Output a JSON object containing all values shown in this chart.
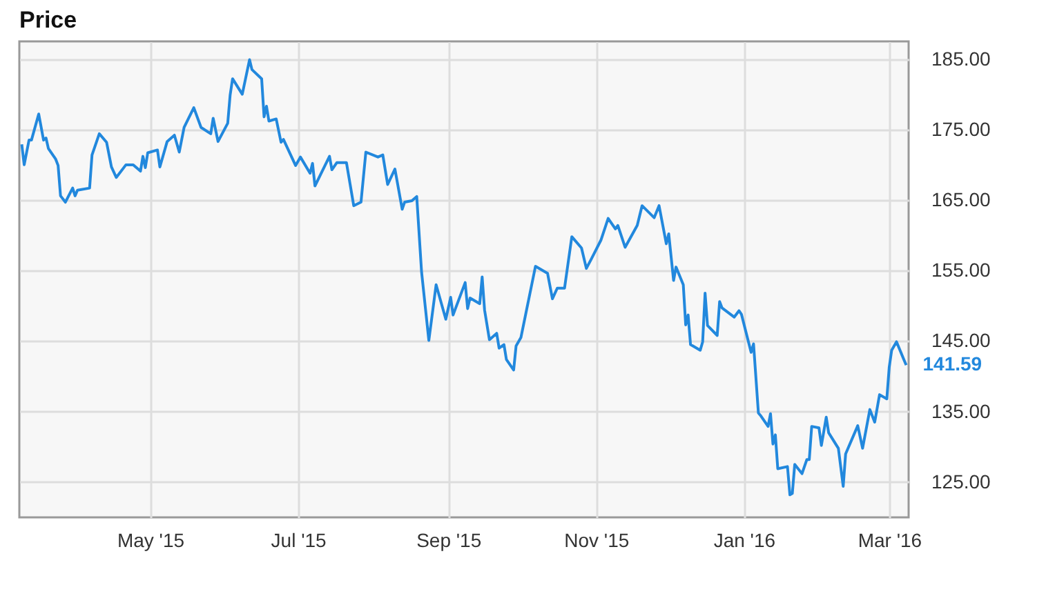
{
  "chart_data": {
    "type": "line",
    "title": "Price",
    "color": "#2288dd",
    "grid": true,
    "x": [
      "2015-03-09",
      "2015-03-10",
      "2015-03-12",
      "2015-03-13",
      "2015-03-16",
      "2015-03-18",
      "2015-03-19",
      "2015-03-20",
      "2015-03-23",
      "2015-03-24",
      "2015-03-25",
      "2015-03-27",
      "2015-03-30",
      "2015-03-31",
      "2015-04-01",
      "2015-04-06",
      "2015-04-07",
      "2015-04-10",
      "2015-04-13",
      "2015-04-15",
      "2015-04-17",
      "2015-04-21",
      "2015-04-24",
      "2015-04-27",
      "2015-04-28",
      "2015-04-29",
      "2015-04-30",
      "2015-05-04",
      "2015-05-05",
      "2015-05-08",
      "2015-05-11",
      "2015-05-13",
      "2015-05-15",
      "2015-05-19",
      "2015-05-22",
      "2015-05-26",
      "2015-05-27",
      "2015-05-29",
      "2015-06-02",
      "2015-06-03",
      "2015-06-04",
      "2015-06-08",
      "2015-06-11",
      "2015-06-12",
      "2015-06-16",
      "2015-06-17",
      "2015-06-18",
      "2015-06-19",
      "2015-06-22",
      "2015-06-24",
      "2015-06-25",
      "2015-06-30",
      "2015-07-02",
      "2015-07-06",
      "2015-07-07",
      "2015-07-08",
      "2015-07-14",
      "2015-07-15",
      "2015-07-17",
      "2015-07-21",
      "2015-07-24",
      "2015-07-27",
      "2015-07-29",
      "2015-08-03",
      "2015-08-05",
      "2015-08-07",
      "2015-08-10",
      "2015-08-13",
      "2015-08-14",
      "2015-08-17",
      "2015-08-19",
      "2015-08-21",
      "2015-08-24",
      "2015-08-27",
      "2015-08-31",
      "2015-09-02",
      "2015-09-03",
      "2015-09-08",
      "2015-09-09",
      "2015-09-10",
      "2015-09-14",
      "2015-09-15",
      "2015-09-16",
      "2015-09-18",
      "2015-09-21",
      "2015-09-22",
      "2015-09-24",
      "2015-09-25",
      "2015-09-28",
      "2015-09-29",
      "2015-10-01",
      "2015-10-07",
      "2015-10-12",
      "2015-10-14",
      "2015-10-16",
      "2015-10-19",
      "2015-10-22",
      "2015-10-26",
      "2015-10-28",
      "2015-10-30",
      "2015-11-03",
      "2015-11-06",
      "2015-11-09",
      "2015-11-10",
      "2015-11-13",
      "2015-11-18",
      "2015-11-20",
      "2015-11-25",
      "2015-11-27",
      "2015-11-30",
      "2015-12-01",
      "2015-12-03",
      "2015-12-04",
      "2015-12-07",
      "2015-12-08",
      "2015-12-09",
      "2015-12-10",
      "2015-12-14",
      "2015-12-15",
      "2015-12-16",
      "2015-12-17",
      "2015-12-21",
      "2015-12-22",
      "2015-12-23",
      "2015-12-28",
      "2015-12-30",
      "2015-12-31",
      "2016-01-04",
      "2016-01-05",
      "2016-01-07",
      "2016-01-08",
      "2016-01-11",
      "2016-01-12",
      "2016-01-13",
      "2016-01-14",
      "2016-01-15",
      "2016-01-19",
      "2016-01-20",
      "2016-01-21",
      "2016-01-22",
      "2016-01-25",
      "2016-01-27",
      "2016-01-28",
      "2016-01-29",
      "2016-02-01",
      "2016-02-02",
      "2016-02-04",
      "2016-02-05",
      "2016-02-09",
      "2016-02-11",
      "2016-02-12",
      "2016-02-17",
      "2016-02-19",
      "2016-02-22",
      "2016-02-24",
      "2016-02-26",
      "2016-02-29",
      "2016-03-01",
      "2016-03-02",
      "2016-03-04",
      "2016-03-07",
      "2016-03-08"
    ],
    "values": [
      172.9,
      170.0,
      173.5,
      173.5,
      177.2,
      173.5,
      173.8,
      172.3,
      170.8,
      169.9,
      165.6,
      164.7,
      166.7,
      165.6,
      166.4,
      166.7,
      171.4,
      174.4,
      173.2,
      169.7,
      168.2,
      170.0,
      170.0,
      169.1,
      171.2,
      169.6,
      171.7,
      172.1,
      169.7,
      173.3,
      174.2,
      171.8,
      175.3,
      178.1,
      175.3,
      174.4,
      176.6,
      173.3,
      175.9,
      179.9,
      182.2,
      180.0,
      184.9,
      183.5,
      182.2,
      176.8,
      178.3,
      176.2,
      176.5,
      173.2,
      173.6,
      169.9,
      171.1,
      168.8,
      170.2,
      167.0,
      171.2,
      169.3,
      170.3,
      170.3,
      164.2,
      164.7,
      171.8,
      171.1,
      171.4,
      167.2,
      169.4,
      163.7,
      164.7,
      164.9,
      165.5,
      154.8,
      145.1,
      153.0,
      148.1,
      151.2,
      148.7,
      153.3,
      149.6,
      151.1,
      150.3,
      154.1,
      149.4,
      145.2,
      146.1,
      144.0,
      144.5,
      142.4,
      140.9,
      144.3,
      145.5,
      155.6,
      154.6,
      151.0,
      152.5,
      152.5,
      159.8,
      158.2,
      155.3,
      156.6,
      159.3,
      162.4,
      160.9,
      161.4,
      158.3,
      161.4,
      164.2,
      162.5,
      164.2,
      158.8,
      160.2,
      153.6,
      155.5,
      153.0,
      147.3,
      148.7,
      144.5,
      143.7,
      144.9,
      151.8,
      147.2,
      145.8,
      150.6,
      149.7,
      148.4,
      149.3,
      148.8,
      143.4,
      144.6,
      134.8,
      134.4,
      132.9,
      134.7,
      130.4,
      131.7,
      126.9,
      127.2,
      123.2,
      123.4,
      127.5,
      126.2,
      128.2,
      128.2,
      132.9,
      132.7,
      130.2,
      134.2,
      132.0,
      129.8,
      124.4,
      129.0,
      133.0,
      129.8,
      135.3,
      133.5,
      137.4,
      136.8,
      141.3,
      143.7,
      144.9,
      142.4,
      141.59
    ],
    "xlim": [
      "2015-03-08",
      "2016-03-09"
    ],
    "xticks": [
      {
        "value": "2015-05-01",
        "label": "May '15"
      },
      {
        "value": "2015-07-01",
        "label": "Jul '15"
      },
      {
        "value": "2015-09-01",
        "label": "Sep '15"
      },
      {
        "value": "2015-11-01",
        "label": "Nov '15"
      },
      {
        "value": "2016-01-01",
        "label": "Jan '16"
      },
      {
        "value": "2016-03-01",
        "label": "Mar '16"
      }
    ],
    "ylim": [
      120,
      187.5
    ],
    "yticks": [
      {
        "value": 125,
        "label": "125.00"
      },
      {
        "value": 135,
        "label": "135.00"
      },
      {
        "value": 145,
        "label": "145.00"
      },
      {
        "value": 155,
        "label": "155.00"
      },
      {
        "value": 165,
        "label": "165.00"
      },
      {
        "value": 175,
        "label": "175.00"
      },
      {
        "value": 185,
        "label": "185.00"
      }
    ],
    "annotations": [
      {
        "text": "141.59",
        "x": "2016-03-08",
        "y": 141.59
      }
    ]
  }
}
